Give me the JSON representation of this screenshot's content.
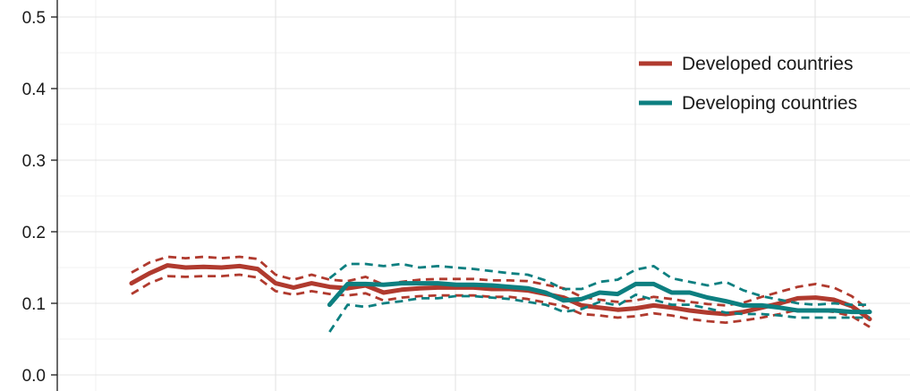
{
  "chart_data": {
    "type": "line",
    "title": "",
    "xlabel": "",
    "ylabel": "",
    "ylim": [
      0.0,
      0.5
    ],
    "yticks": [
      "0.0",
      "0.1",
      "0.2",
      "0.3",
      "0.4",
      "0.5"
    ],
    "grid": true,
    "legend_position": "top-right",
    "x": [
      1,
      2,
      3,
      4,
      5,
      6,
      7,
      8,
      9,
      10,
      11,
      12,
      13,
      14,
      15,
      16,
      17,
      18,
      19,
      20,
      21,
      22,
      23,
      24,
      25,
      26,
      27,
      28,
      29,
      30,
      31,
      32,
      33,
      34,
      35,
      36,
      37,
      38,
      39,
      40,
      41,
      42
    ],
    "series": [
      {
        "name": "Developed countries",
        "color": "#b03a2e",
        "style": "solid",
        "values": [
          0.128,
          0.142,
          0.153,
          0.15,
          0.151,
          0.15,
          0.152,
          0.148,
          0.128,
          0.122,
          0.128,
          0.123,
          0.121,
          0.125,
          0.115,
          0.119,
          0.121,
          0.122,
          0.122,
          0.122,
          0.12,
          0.12,
          0.118,
          0.113,
          0.108,
          0.097,
          0.094,
          0.091,
          0.093,
          0.097,
          0.094,
          0.09,
          0.087,
          0.085,
          0.088,
          0.094,
          0.1,
          0.107,
          0.108,
          0.105,
          0.096,
          0.078
        ]
      },
      {
        "name": "",
        "color": "#b03a2e",
        "style": "dashed",
        "values": [
          0.143,
          0.157,
          0.165,
          0.163,
          0.165,
          0.163,
          0.165,
          0.162,
          0.14,
          0.133,
          0.14,
          0.133,
          0.131,
          0.137,
          0.126,
          0.13,
          0.133,
          0.134,
          0.134,
          0.134,
          0.132,
          0.132,
          0.131,
          0.126,
          0.121,
          0.109,
          0.105,
          0.102,
          0.104,
          0.109,
          0.106,
          0.102,
          0.099,
          0.097,
          0.101,
          0.109,
          0.116,
          0.123,
          0.127,
          0.122,
          0.11,
          0.089
        ]
      },
      {
        "name": "",
        "color": "#b03a2e",
        "style": "dashed",
        "values": [
          0.113,
          0.128,
          0.138,
          0.137,
          0.138,
          0.138,
          0.14,
          0.136,
          0.117,
          0.112,
          0.117,
          0.113,
          0.111,
          0.114,
          0.104,
          0.108,
          0.11,
          0.111,
          0.111,
          0.111,
          0.109,
          0.109,
          0.106,
          0.101,
          0.096,
          0.085,
          0.083,
          0.08,
          0.082,
          0.086,
          0.083,
          0.078,
          0.075,
          0.073,
          0.076,
          0.08,
          0.085,
          0.091,
          0.09,
          0.088,
          0.082,
          0.067
        ]
      },
      {
        "name": "Developing countries",
        "color": "#0d7f80",
        "style": "solid",
        "values": [
          null,
          null,
          null,
          null,
          null,
          null,
          null,
          null,
          null,
          null,
          null,
          0.098,
          0.127,
          0.127,
          0.126,
          0.128,
          0.128,
          0.128,
          0.126,
          0.126,
          0.125,
          0.123,
          0.121,
          0.115,
          0.104,
          0.106,
          0.115,
          0.113,
          0.127,
          0.127,
          0.115,
          0.115,
          0.108,
          0.103,
          0.097,
          0.097,
          0.094,
          0.09,
          0.09,
          0.09,
          0.088,
          0.088
        ]
      },
      {
        "name": "",
        "color": "#0d7f80",
        "style": "dashed",
        "values": [
          null,
          null,
          null,
          null,
          null,
          null,
          null,
          null,
          null,
          null,
          null,
          0.135,
          0.155,
          0.155,
          0.152,
          0.155,
          0.15,
          0.152,
          0.15,
          0.148,
          0.145,
          0.142,
          0.14,
          0.132,
          0.12,
          0.12,
          0.13,
          0.133,
          0.147,
          0.152,
          0.135,
          0.13,
          0.125,
          0.13,
          0.118,
          0.11,
          0.105,
          0.1,
          0.098,
          0.1,
          0.098,
          0.098
        ]
      },
      {
        "name": "",
        "color": "#0d7f80",
        "style": "dashed",
        "values": [
          null,
          null,
          null,
          null,
          null,
          null,
          null,
          null,
          null,
          null,
          null,
          0.06,
          0.098,
          0.095,
          0.1,
          0.103,
          0.107,
          0.107,
          0.11,
          0.11,
          0.108,
          0.106,
          0.102,
          0.098,
          0.088,
          0.092,
          0.102,
          0.097,
          0.112,
          0.105,
          0.098,
          0.098,
          0.093,
          0.087,
          0.085,
          0.085,
          0.083,
          0.08,
          0.08,
          0.08,
          0.08,
          0.08
        ]
      }
    ]
  }
}
